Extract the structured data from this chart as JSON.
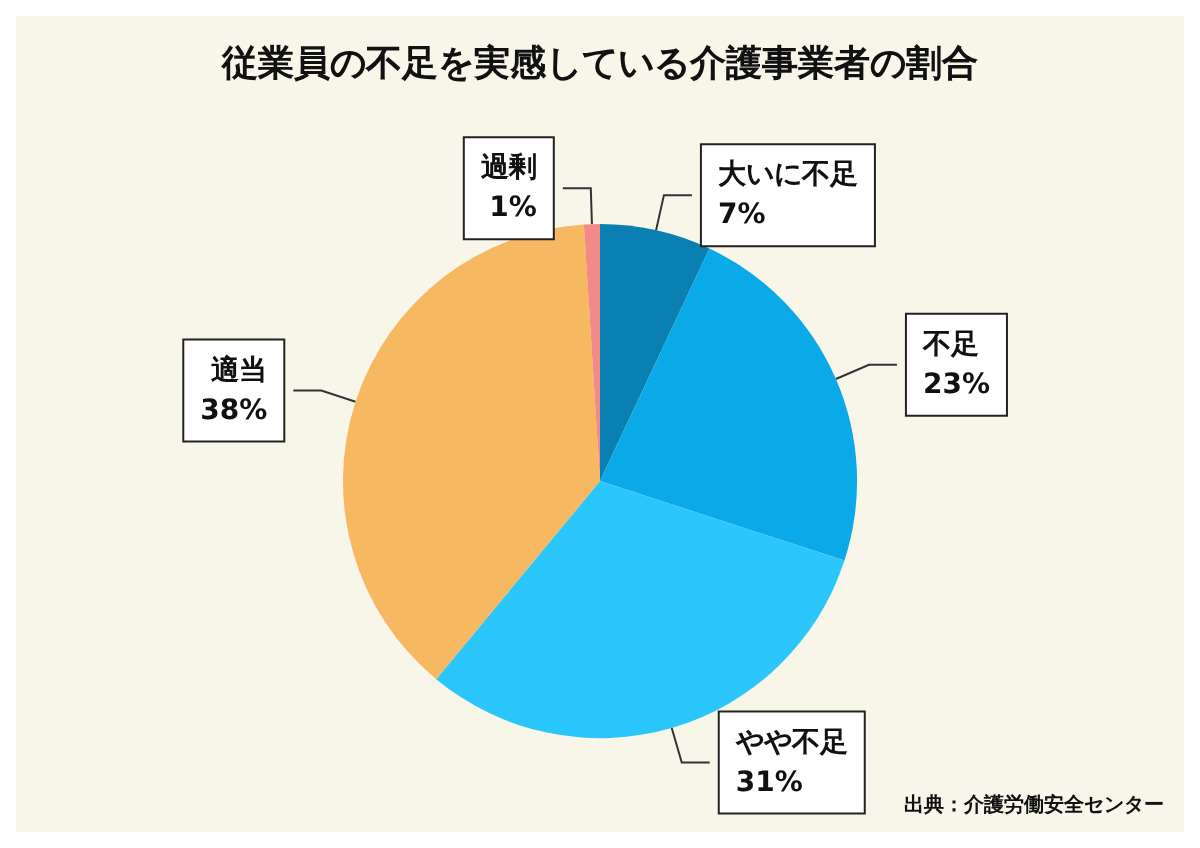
{
  "chart_data": {
    "type": "pie",
    "title": "従業員の不足を実感している介護事業者の割合",
    "categories": [
      "大いに不足",
      "不足",
      "やや不足",
      "適当",
      "過剰"
    ],
    "values": [
      7,
      23,
      31,
      38,
      1
    ],
    "value_labels": [
      "7%",
      "23%",
      "31%",
      "38%",
      "1%"
    ],
    "colors": [
      "#0a80b2",
      "#0aa9e8",
      "#2bc6fb",
      "#f7b862",
      "#f28a8a"
    ],
    "legend": false,
    "annotations": [
      "出典：介護労働安全センター"
    ]
  }
}
